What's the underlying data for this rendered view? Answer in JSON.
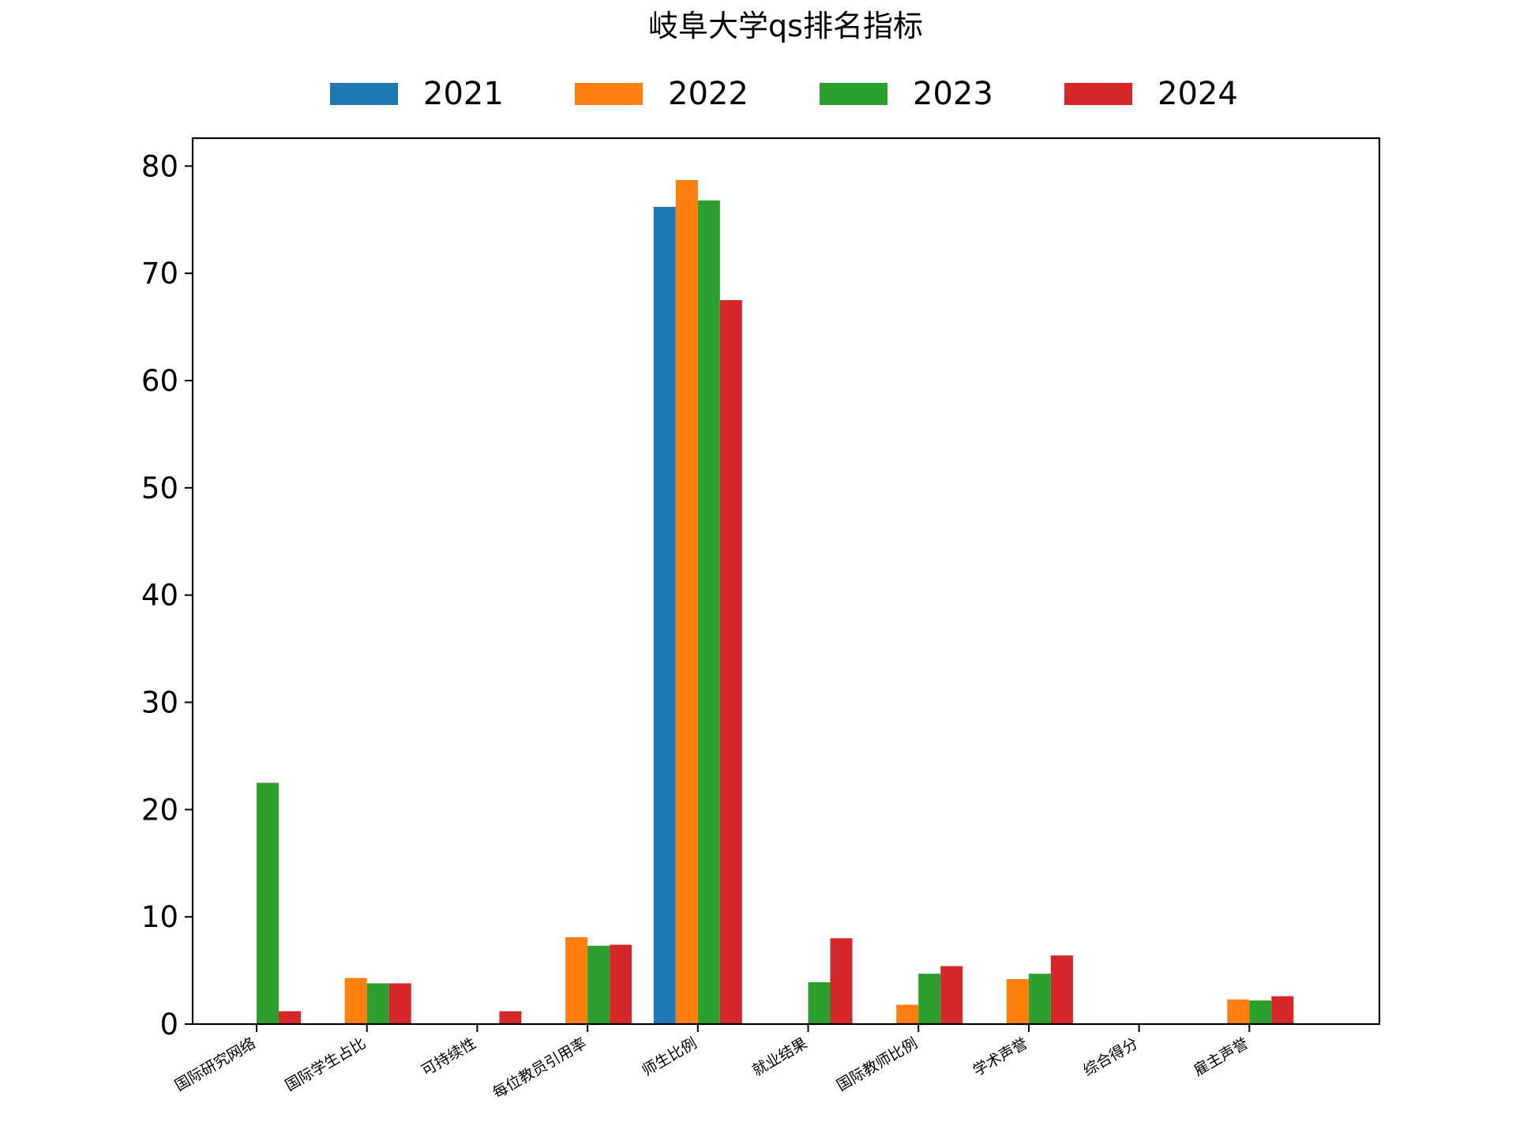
{
  "chart_data": {
    "type": "bar",
    "title": "岐阜大学qs排名指标",
    "xlabel": "",
    "ylabel": "",
    "categories": [
      "国际研究网络",
      "国际学生占比",
      "可持续性",
      "每位教员引用率",
      "师生比例",
      "就业结果",
      "国际教师比例",
      "学术声誉",
      "综合得分",
      "雇主声誉"
    ],
    "yticks": [
      "0",
      "10",
      "20",
      "30",
      "40",
      "50",
      "60",
      "70",
      "80"
    ],
    "ylim": [
      0,
      82.6
    ],
    "legend_position": "top-center",
    "grid": false,
    "series": [
      {
        "name": "2021",
        "color": "#1f77b4",
        "values": [
          null,
          null,
          null,
          null,
          76.2,
          null,
          null,
          null,
          null,
          null
        ]
      },
      {
        "name": "2022",
        "color": "#ff7f0e",
        "values": [
          null,
          4.3,
          null,
          8.1,
          78.7,
          null,
          1.8,
          4.2,
          null,
          2.3
        ]
      },
      {
        "name": "2023",
        "color": "#2ca02c",
        "values": [
          22.5,
          3.8,
          null,
          7.3,
          76.8,
          3.9,
          4.7,
          4.7,
          null,
          2.2
        ]
      },
      {
        "name": "2024",
        "color": "#d62728",
        "values": [
          1.2,
          3.8,
          1.2,
          7.4,
          67.5,
          8.0,
          5.4,
          6.4,
          null,
          2.6
        ]
      }
    ]
  }
}
